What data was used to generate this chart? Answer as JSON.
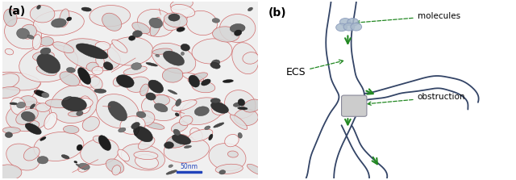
{
  "fig_width": 6.4,
  "fig_height": 2.23,
  "dpi": 100,
  "bg_color": "#ffffff",
  "label_a": "(a)",
  "label_b": "(b)",
  "label_fontsize": 10,
  "scale_bar_text": "50nm",
  "scale_bar_color": "#2244bb",
  "ecs_label": "ECS",
  "molecules_label": "molecules",
  "obstruction_label": "obstruction",
  "annotation_color": "#228822",
  "cell_outline_color": "#cc5555",
  "channel_color": "#334466",
  "obstruction_fill": "#cccccc",
  "molecule_color": "#aabbcc",
  "molecule_edge": "#8899bb"
}
